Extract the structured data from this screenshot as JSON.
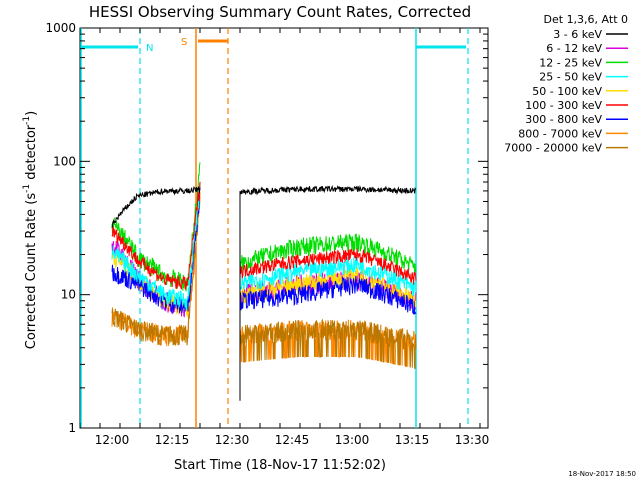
{
  "chart_data": {
    "type": "line",
    "title": "HESSI Observing Summary Count Rates, Corrected",
    "xlabel": "Start Time (18-Nov-17 11:52:02)",
    "ylabel": "Corrected Count Rate (s⁻¹ detector⁻¹)",
    "ylabel_main": "Corrected Count Rate (s",
    "ylabel_sup1": "-1",
    "ylabel_mid": " detector",
    "ylabel_sup2": "-1",
    "ylabel_end": ")",
    "y_scale": "log",
    "ylim": [
      1,
      1000
    ],
    "xlim_minutes_after_11_52": [
      0,
      102
    ],
    "x_ticks": [
      {
        "label": "12:00",
        "min": 8
      },
      {
        "label": "12:15",
        "min": 23
      },
      {
        "label": "12:30",
        "min": 38
      },
      {
        "label": "12:45",
        "min": 53
      },
      {
        "label": "13:00",
        "min": 68
      },
      {
        "label": "13:15",
        "min": 83
      },
      {
        "label": "13:30",
        "min": 98
      }
    ],
    "y_ticks": [
      {
        "label": "1",
        "v": 1
      },
      {
        "label": "10",
        "v": 10
      },
      {
        "label": "100",
        "v": 100
      },
      {
        "label": "1000",
        "v": 1000
      }
    ],
    "legend_title": "Det 1,3,6, Att 0",
    "legend_position": "right",
    "series": [
      {
        "name": "3 - 6 keV",
        "color": "#000000",
        "a": [
          33,
          55,
          60,
          60
        ],
        "flare": 62,
        "b": [
          59,
          62,
          62,
          60
        ]
      },
      {
        "name": "6 - 12 keV",
        "color": "#dd00dd",
        "a": [
          24,
          13,
          9,
          8
        ],
        "flare": 60,
        "b": [
          10,
          12,
          13,
          9
        ]
      },
      {
        "name": "12 - 25 keV",
        "color": "#00dd00",
        "a": [
          34,
          19,
          14,
          12
        ],
        "flare": 90,
        "b": [
          17,
          23,
          25,
          16
        ]
      },
      {
        "name": "25 - 50 keV",
        "color": "#00ffff",
        "a": [
          21,
          14,
          10,
          9
        ],
        "flare": 65,
        "b": [
          12,
          15,
          17,
          11
        ]
      },
      {
        "name": "50 - 100 keV",
        "color": "#ffdd00",
        "a": [
          20,
          13,
          9,
          8
        ],
        "flare": 62,
        "b": [
          10,
          12,
          14,
          9
        ]
      },
      {
        "name": "100 - 300 keV",
        "color": "#ff0000",
        "a": [
          30,
          18,
          13,
          12
        ],
        "flare": 70,
        "b": [
          15,
          18,
          20,
          13
        ]
      },
      {
        "name": "300 - 800 keV",
        "color": "#0000ff",
        "a": [
          15,
          12,
          9,
          8
        ],
        "flare": 60,
        "b": [
          9,
          10,
          12,
          8
        ]
      },
      {
        "name": "800 - 7000 keV",
        "color": "#ff8800",
        "a": [
          7,
          5.5,
          5,
          5
        ],
        "flare": 58,
        "b": [
          5,
          5.5,
          5.5,
          4.5
        ]
      },
      {
        "name": "7000 - 20000 keV",
        "color": "#bb7700",
        "a": [
          7,
          5.5,
          5,
          5
        ],
        "flare": 55,
        "b": [
          5,
          5.5,
          5.5,
          4.5
        ]
      }
    ],
    "time_segments_minutes": {
      "segment_a": [
        8,
        30
      ],
      "gap": [
        30,
        40
      ],
      "segment_b": [
        40,
        84
      ]
    },
    "annotations": {
      "night_label": "N",
      "saa_label": "S",
      "night_periods_minutes": [
        [
          -1,
          15
        ],
        [
          84,
          97
        ]
      ],
      "saa_period_minutes": [
        29,
        37
      ],
      "night_color": "#00e5ee",
      "saa_color": "#ff8000"
    },
    "grid": false
  },
  "footer": {
    "timestamp": "18-Nov-2017 18:50"
  }
}
